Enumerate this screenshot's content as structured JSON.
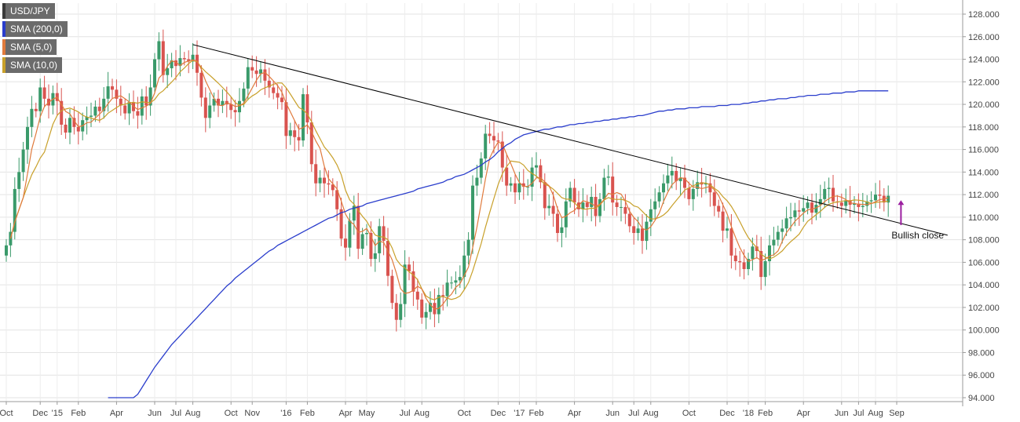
{
  "chart_data": {
    "type": "candlestick",
    "symbol": "USD/JPY",
    "indicators": [
      {
        "name": "SMA (200,0)",
        "color": "#2a3dcc"
      },
      {
        "name": "SMA (5,0)",
        "color": "#e07a3c"
      },
      {
        "name": "SMA (10,0)",
        "color": "#c8a02a"
      }
    ],
    "colors": {
      "up": "#3a9a6a",
      "down": "#d9534f",
      "trendline": "#000000",
      "annotation_arrow": "#9b1fa0",
      "grid": "#e3e3e3"
    },
    "ylim": [
      94.0,
      128.5
    ],
    "y_ticks": [
      "128.000",
      "126.000",
      "124.000",
      "122.000",
      "120.000",
      "118.000",
      "116.000",
      "114.000",
      "112.000",
      "110.000",
      "108.000",
      "106.000",
      "104.000",
      "102.000",
      "100.000",
      "98.000",
      "96.000",
      "94.000"
    ],
    "x_ticks": [
      {
        "label": "Oct",
        "i": 0
      },
      {
        "label": "Dec",
        "i": 8
      },
      {
        "label": "'15",
        "i": 12
      },
      {
        "label": "Feb",
        "i": 17
      },
      {
        "label": "Apr",
        "i": 26
      },
      {
        "label": "Jun",
        "i": 35
      },
      {
        "label": "Jul",
        "i": 40
      },
      {
        "label": "Aug",
        "i": 44
      },
      {
        "label": "Oct",
        "i": 53
      },
      {
        "label": "Nov",
        "i": 58
      },
      {
        "label": "'16",
        "i": 66
      },
      {
        "label": "Feb",
        "i": 71
      },
      {
        "label": "Apr",
        "i": 80
      },
      {
        "label": "May",
        "i": 85
      },
      {
        "label": "Jul",
        "i": 94
      },
      {
        "label": "Aug",
        "i": 98
      },
      {
        "label": "Oct",
        "i": 108
      },
      {
        "label": "Dec",
        "i": 116
      },
      {
        "label": "'17",
        "i": 121
      },
      {
        "label": "Feb",
        "i": 125
      },
      {
        "label": "Apr",
        "i": 134
      },
      {
        "label": "Jun",
        "i": 143
      },
      {
        "label": "Jul",
        "i": 148
      },
      {
        "label": "Aug",
        "i": 152
      },
      {
        "label": "Oct",
        "i": 161
      },
      {
        "label": "Dec",
        "i": 170
      },
      {
        "label": "'18",
        "i": 175
      },
      {
        "label": "Feb",
        "i": 179
      },
      {
        "label": "Apr",
        "i": 188
      },
      {
        "label": "Jun",
        "i": 197
      },
      {
        "label": "Jul",
        "i": 201
      },
      {
        "label": "Aug",
        "i": 205
      },
      {
        "label": "Sep",
        "i": 210
      }
    ],
    "close": [
      107.5,
      108.7,
      112.5,
      114.0,
      116.0,
      118.0,
      119.6,
      119.4,
      121.5,
      120.5,
      119.9,
      121.0,
      120.3,
      118.2,
      117.5,
      118.8,
      118.0,
      117.6,
      118.6,
      118.9,
      119.0,
      119.8,
      119.4,
      120.5,
      121.6,
      121.3,
      120.5,
      119.9,
      119.2,
      120.2,
      119.4,
      119.0,
      120.7,
      119.9,
      121.5,
      124.0,
      125.6,
      122.6,
      123.2,
      123.9,
      123.4,
      124.1,
      124.0,
      123.8,
      124.4,
      122.8,
      120.6,
      118.8,
      119.9,
      120.5,
      119.9,
      120.3,
      120.0,
      119.5,
      119.3,
      120.3,
      121.4,
      123.3,
      123.0,
      122.7,
      123.1,
      122.1,
      121.5,
      121.0,
      120.6,
      120.2,
      117.2,
      117.7,
      117.1,
      116.8,
      120.9,
      118.4,
      114.7,
      113.0,
      113.5,
      113.0,
      112.9,
      112.4,
      110.7,
      108.1,
      107.3,
      109.7,
      111.0,
      107.2,
      108.5,
      108.6,
      106.3,
      106.8,
      109.2,
      107.9,
      104.8,
      102.4,
      100.9,
      102.3,
      105.8,
      105.2,
      103.4,
      102.7,
      101.1,
      101.6,
      102.4,
      101.4,
      103.1,
      103.0,
      104.2,
      104.2,
      104.4,
      104.7,
      106.6,
      108.0,
      112.8,
      113.5,
      115.2,
      117.4,
      117.2,
      116.8,
      116.7,
      114.4,
      112.8,
      113.0,
      112.2,
      113.0,
      112.7,
      112.7,
      114.4,
      114.6,
      113.1,
      110.8,
      111.0,
      110.3,
      108.6,
      109.1,
      111.4,
      112.6,
      111.3,
      110.7,
      111.3,
      110.9,
      111.8,
      110.1,
      111.6,
      113.5,
      113.6,
      111.3,
      110.9,
      110.9,
      110.3,
      109.2,
      108.6,
      109.0,
      107.9,
      109.6,
      110.7,
      111.4,
      112.2,
      113.0,
      113.7,
      114.1,
      113.2,
      113.5,
      112.6,
      111.6,
      112.5,
      113.1,
      112.9,
      113.0,
      112.2,
      111.0,
      110.5,
      108.8,
      109.0,
      106.6,
      106.1,
      106.0,
      105.4,
      106.3,
      107.4,
      107.0,
      104.7,
      106.1,
      107.5,
      108.0,
      108.7,
      109.0,
      109.9,
      110.0,
      110.6,
      110.5,
      110.8,
      111.3,
      110.4,
      111.1,
      111.6,
      112.5,
      112.6,
      111.4,
      111.3,
      111.0,
      111.5,
      111.1,
      111.2,
      110.9,
      111.0,
      111.4,
      111.5,
      112.0,
      111.9,
      111.3,
      111.9
    ],
    "sma200": [
      94.0,
      94.0,
      94.0,
      94.0,
      94.0,
      94.0,
      94.0,
      94.0,
      94.0,
      94.0,
      94.0,
      94.0,
      94.0,
      94.0,
      94.0,
      94.0,
      94.0,
      94.0,
      94.0,
      94.0,
      94.0,
      94.0,
      94.0,
      94.0,
      94.0,
      94.0,
      94.0,
      94.0,
      94.0,
      94.0,
      94.0,
      94.3,
      94.9,
      95.5,
      96.1,
      96.7,
      97.2,
      97.7,
      98.2,
      98.7,
      99.1,
      99.5,
      99.9,
      100.3,
      100.7,
      101.1,
      101.5,
      101.9,
      102.3,
      102.7,
      103.1,
      103.5,
      103.9,
      104.2,
      104.6,
      104.9,
      105.2,
      105.5,
      105.8,
      106.1,
      106.4,
      106.7,
      107.0,
      107.2,
      107.5,
      107.7,
      107.9,
      108.1,
      108.3,
      108.5,
      108.7,
      108.9,
      109.1,
      109.3,
      109.5,
      109.7,
      109.9,
      110.0,
      110.2,
      110.4,
      110.5,
      110.7,
      110.8,
      110.9,
      111.0,
      111.2,
      111.3,
      111.4,
      111.5,
      111.6,
      111.7,
      111.8,
      111.9,
      112.0,
      112.1,
      112.2,
      112.3,
      112.5,
      112.6,
      112.7,
      112.8,
      112.9,
      113.0,
      113.1,
      113.3,
      113.4,
      113.6,
      113.7,
      113.8,
      114.0,
      114.2,
      114.4,
      114.6,
      114.9,
      115.1,
      115.4,
      115.8,
      116.1,
      116.4,
      116.6,
      116.9,
      117.1,
      117.3,
      117.4,
      117.5,
      117.6,
      117.7,
      117.8,
      117.8,
      117.9,
      118.0,
      118.0,
      118.1,
      118.2,
      118.2,
      118.3,
      118.3,
      118.4,
      118.4,
      118.5,
      118.5,
      118.6,
      118.6,
      118.7,
      118.7,
      118.8,
      118.8,
      118.9,
      118.9,
      119.0,
      119.0,
      119.1,
      119.2,
      119.3,
      119.4,
      119.4,
      119.5,
      119.5,
      119.6,
      119.6,
      119.6,
      119.7,
      119.7,
      119.7,
      119.8,
      119.8,
      119.8,
      119.8,
      119.9,
      119.9,
      119.9,
      120.0,
      120.0,
      120.0,
      120.1,
      120.1,
      120.2,
      120.2,
      120.3,
      120.3,
      120.4,
      120.4,
      120.5,
      120.5,
      120.5,
      120.6,
      120.6,
      120.7,
      120.7,
      120.8,
      120.8,
      120.8,
      120.9,
      120.9,
      120.9,
      121.0,
      121.0,
      121.0,
      121.1,
      121.1,
      121.1,
      121.2,
      121.2,
      121.2,
      121.2,
      121.2,
      121.2,
      121.2,
      121.2
    ],
    "trendline": {
      "x": [
        44,
        222
      ],
      "y": [
        125.3,
        108.4
      ]
    },
    "annotation": {
      "text": "Bullish close",
      "at_i": 211,
      "price": 109.3
    }
  }
}
